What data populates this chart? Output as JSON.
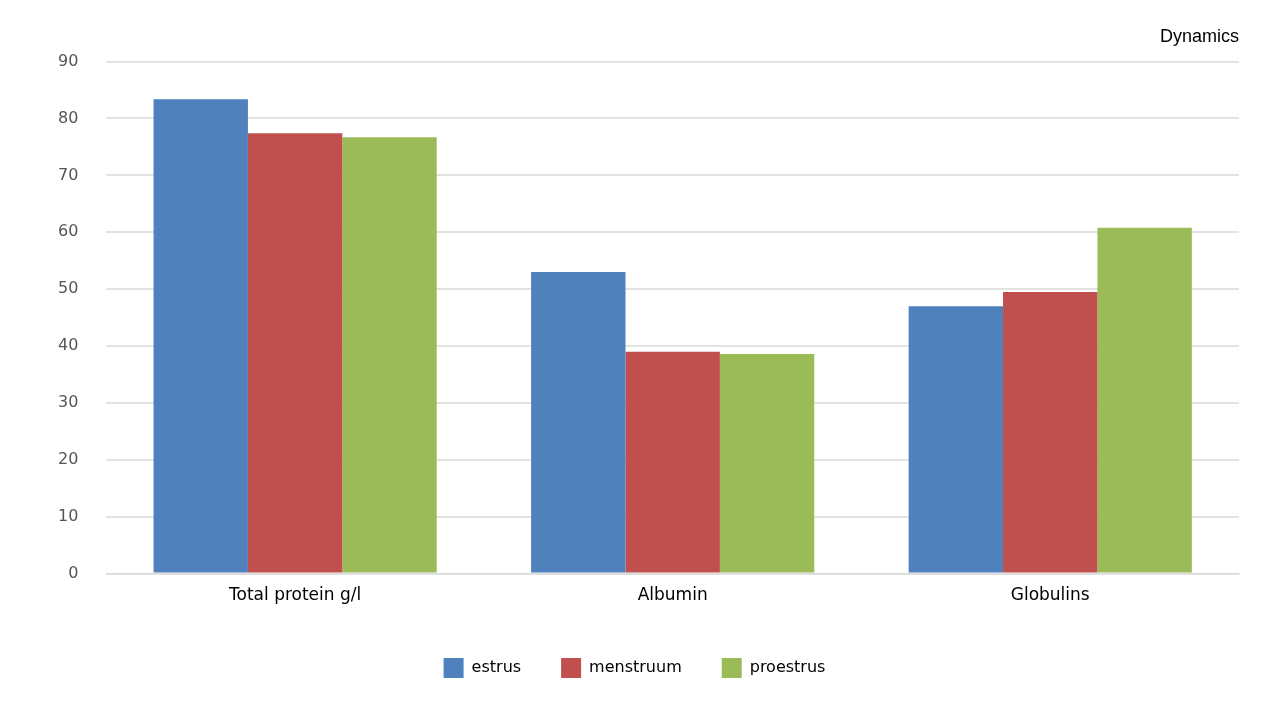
{
  "chart_data": {
    "type": "bar",
    "title": "Dynamics",
    "categories": [
      "Total protein g/l",
      "Albumin",
      "Globulins"
    ],
    "series": [
      {
        "name": "estrus",
        "color": "#4f81bd",
        "values": [
          83.4,
          53.0,
          47.0
        ]
      },
      {
        "name": "menstruum",
        "color": "#c0504d",
        "values": [
          77.4,
          39.0,
          49.5
        ]
      },
      {
        "name": "proestrus",
        "color": "#9bbb59",
        "values": [
          76.7,
          38.6,
          60.8
        ]
      }
    ],
    "ylim": [
      0,
      90
    ],
    "yticks": [
      0,
      10,
      20,
      30,
      40,
      50,
      60,
      70,
      80,
      90
    ],
    "grid": "y",
    "legend": "bottom"
  }
}
